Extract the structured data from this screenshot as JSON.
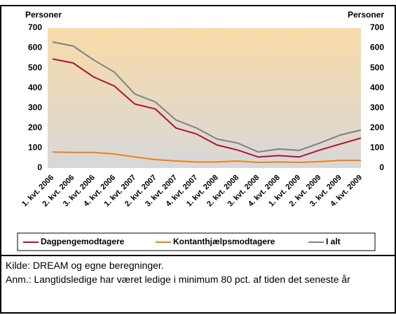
{
  "chart_data": {
    "type": "line",
    "ylabel": "Personer",
    "y2label": "Personer",
    "categories": [
      "1. kvt. 2006",
      "2. kvt. 2006",
      "3. kvt. 2006",
      "4. kvt. 2006",
      "1. kvt. 2007",
      "2. kvt. 2007",
      "3. kvt. 2007",
      "4. kvt. 2007",
      "1. kvt. 2008",
      "2. kvt. 2008",
      "3. kvt. 2008",
      "4. kvt. 2008",
      "1. kvt. 2009",
      "2. kvt. 2009",
      "3. kvt. 2009",
      "4. kvt. 2009"
    ],
    "series": [
      {
        "name": "Dagpengemodtagere",
        "color": "#b0113a",
        "values": [
          545,
          525,
          455,
          410,
          320,
          295,
          200,
          170,
          115,
          90,
          55,
          62,
          55,
          90,
          120,
          150
        ]
      },
      {
        "name": "Kontanthjælpsmodtagere",
        "color": "#f07f1a",
        "values": [
          80,
          78,
          78,
          70,
          55,
          42,
          35,
          30,
          30,
          35,
          28,
          30,
          28,
          32,
          38,
          38
        ]
      },
      {
        "name": "I alt",
        "color": "#808080",
        "values": [
          630,
          610,
          540,
          480,
          370,
          330,
          240,
          200,
          145,
          125,
          80,
          95,
          88,
          125,
          165,
          190
        ]
      }
    ],
    "ylim": [
      0,
      700
    ],
    "yticks": [
      0,
      100,
      200,
      300,
      400,
      500,
      600,
      700
    ],
    "y2lim": [
      0,
      700
    ],
    "y2ticks": [
      0,
      100,
      200,
      300,
      400,
      500,
      600,
      700
    ],
    "legend": "bottom",
    "source": "Kilde: DREAM og egne beregninger.",
    "note": "Anm.: Langtidsledige har været ledige i minimum 80 pct. af tiden det seneste år"
  }
}
